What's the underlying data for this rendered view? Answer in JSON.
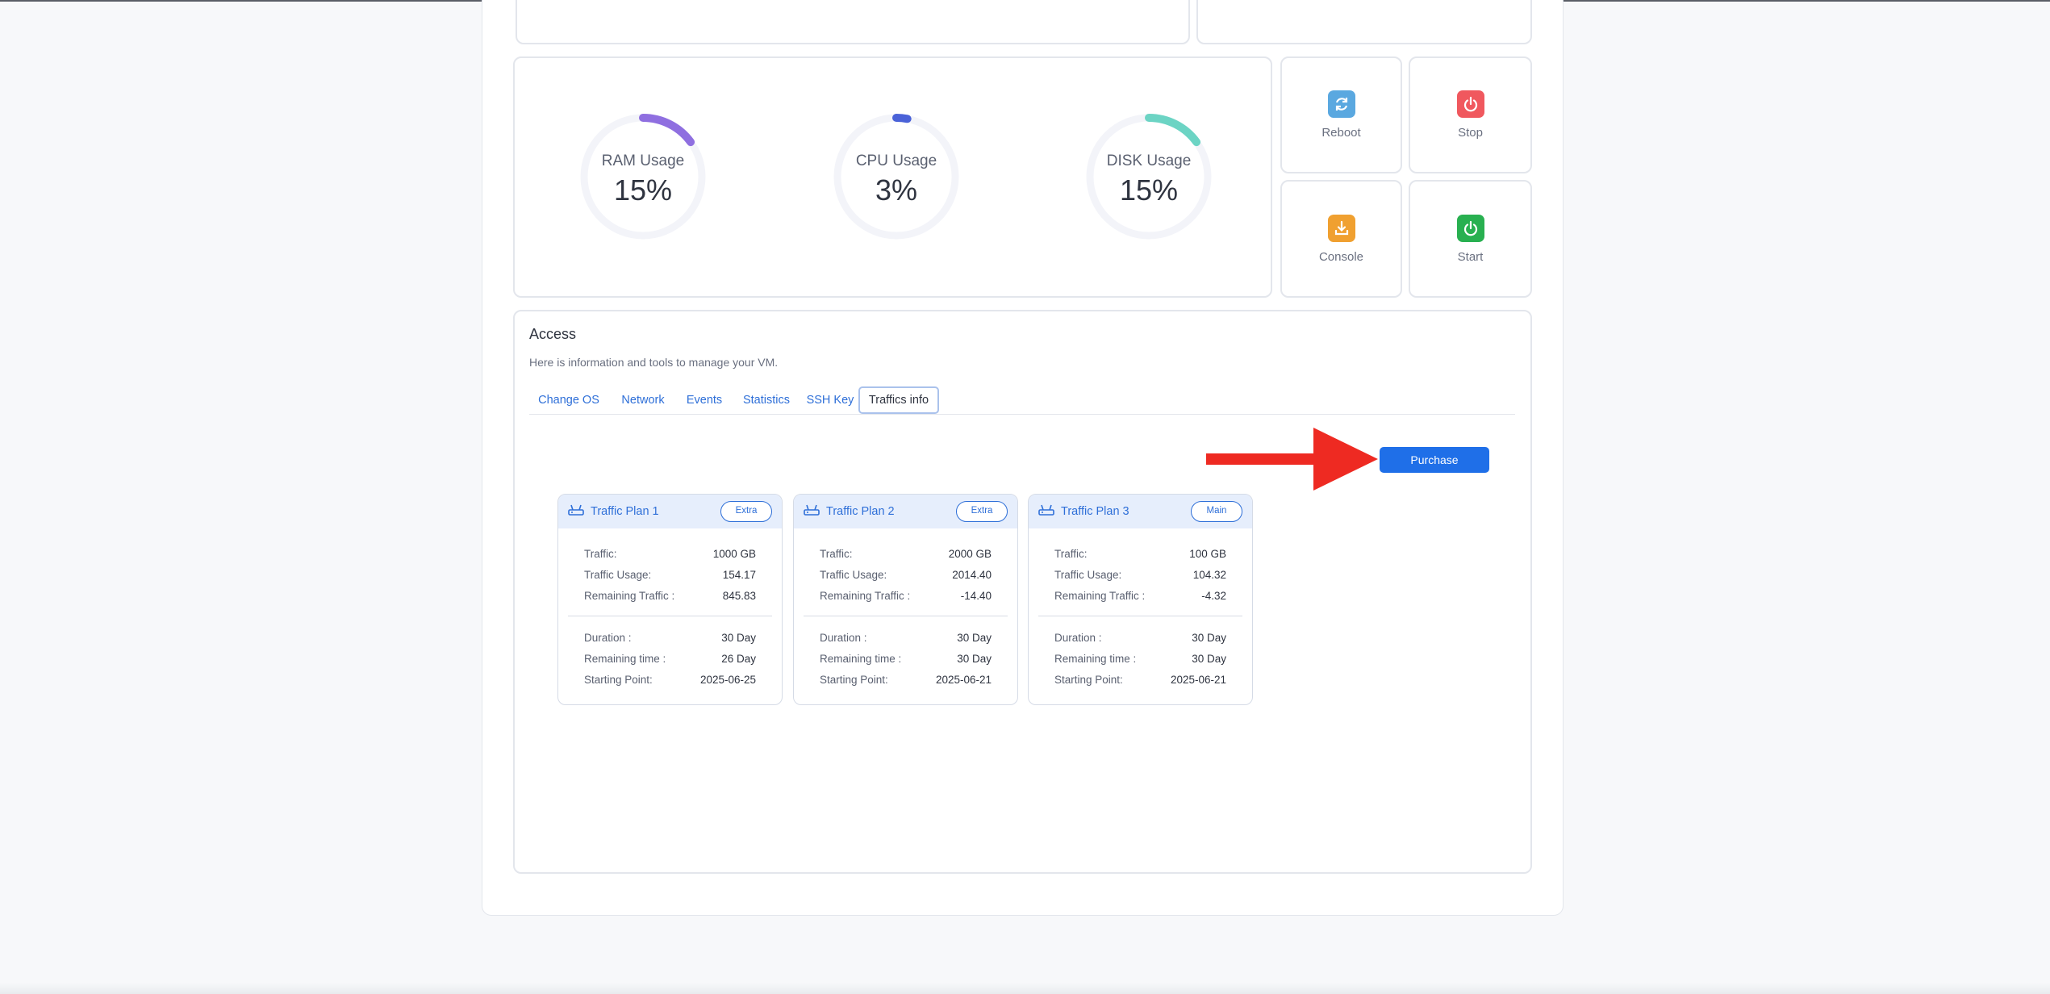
{
  "gauges": [
    {
      "label": "RAM Usage",
      "value": "15%",
      "percent": 15,
      "color": "#8f6fe0"
    },
    {
      "label": "CPU Usage",
      "value": "3%",
      "percent": 3,
      "color": "#4a62d8"
    },
    {
      "label": "DISK Usage",
      "value": "15%",
      "percent": 15,
      "color": "#6cd4c4"
    }
  ],
  "actions": {
    "reboot": {
      "label": "Reboot",
      "icon": "refresh-icon",
      "color": "#5aa8e0"
    },
    "stop": {
      "label": "Stop",
      "icon": "power-icon",
      "color": "#f0585e"
    },
    "console": {
      "label": "Console",
      "icon": "download-icon",
      "color": "#f0a030"
    },
    "start": {
      "label": "Start",
      "icon": "power-icon",
      "color": "#28b050"
    }
  },
  "access": {
    "title": "Access",
    "subtitle": "Here is information and tools to manage your VM.",
    "tabs": [
      "Change OS",
      "Network",
      "Events",
      "Statistics",
      "SSH Key",
      "Traffics info"
    ],
    "active_tab": "Traffics info",
    "purchase_label": "Purchase"
  },
  "plans": [
    {
      "name": "Traffic Plan 1",
      "badge": "Extra",
      "labels": [
        "Traffic:",
        "Traffic Usage:",
        "Remaining Traffic :",
        "Duration :",
        "Remaining time :",
        "Starting Point:"
      ],
      "values": [
        "1000 GB",
        "154.17",
        "845.83",
        "30 Day",
        "26 Day",
        "2025-06-25"
      ]
    },
    {
      "name": "Traffic Plan 2",
      "badge": "Extra",
      "labels": [
        "Traffic:",
        "Traffic Usage:",
        "Remaining Traffic :",
        "Duration :",
        "Remaining time :",
        "Starting Point:"
      ],
      "values": [
        "2000 GB",
        "2014.40",
        "-14.40",
        "30 Day",
        "30 Day",
        "2025-06-21"
      ]
    },
    {
      "name": "Traffic Plan 3",
      "badge": "Main",
      "labels": [
        "Traffic:",
        "Traffic Usage:",
        "Remaining Traffic :",
        "Duration :",
        "Remaining time :",
        "Starting Point:"
      ],
      "values": [
        "100 GB",
        "104.32",
        "-4.32",
        "30 Day",
        "30 Day",
        "2025-06-21"
      ]
    }
  ],
  "colors": {
    "accent": "#1f6fe8",
    "arrow": "#ee2a22"
  }
}
